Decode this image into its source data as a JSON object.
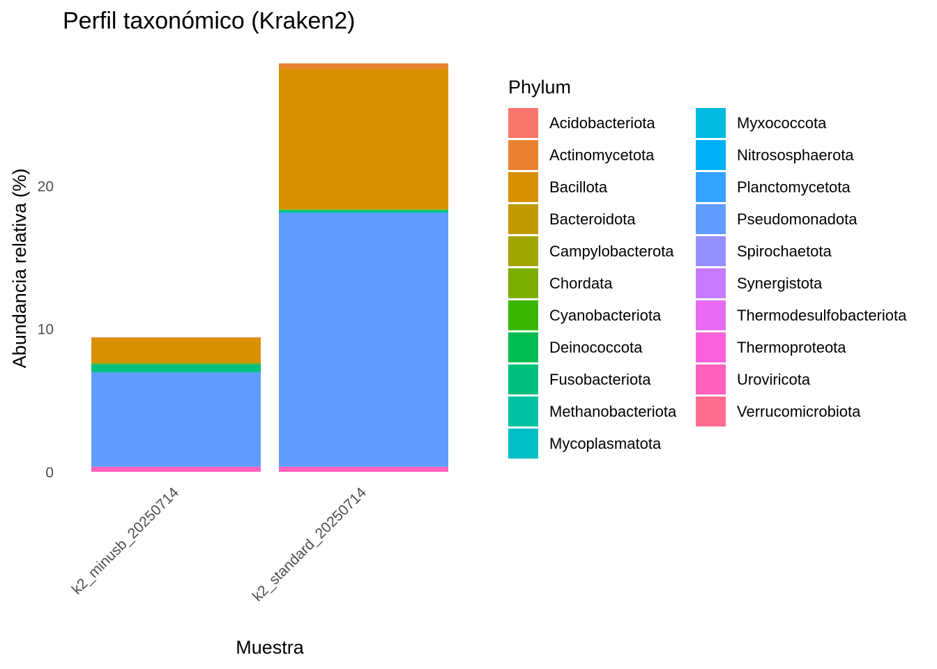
{
  "chart_data": {
    "type": "bar",
    "stacked": true,
    "title": "Perfil taxonómico (Kraken2)",
    "xlabel": "Muestra",
    "ylabel": "Abundancia relativa (%)",
    "ylim": [
      0,
      28.5
    ],
    "yticks": [
      0,
      10,
      20
    ],
    "grid": false,
    "legend_title": "Phylum",
    "legend_position": "right",
    "categories": [
      "k2_minusb_20250714",
      "k2_standard_20250714"
    ],
    "series": [
      {
        "name": "Acidobacteriota",
        "color": "#F8766D",
        "values": [
          0.0,
          0.0
        ]
      },
      {
        "name": "Actinomycetota",
        "color": "#EA8331",
        "values": [
          0.05,
          0.35
        ]
      },
      {
        "name": "Bacillota",
        "color": "#D89000",
        "values": [
          1.7,
          9.8
        ]
      },
      {
        "name": "Bacteroidota",
        "color": "#C09B00",
        "values": [
          0.03,
          0.05
        ]
      },
      {
        "name": "Campylobacterota",
        "color": "#A3A500",
        "values": [
          0.0,
          0.0
        ]
      },
      {
        "name": "Chordata",
        "color": "#7CAE00",
        "values": [
          0.1,
          0.05
        ]
      },
      {
        "name": "Cyanobacteriota",
        "color": "#39B600",
        "values": [
          0.0,
          0.0
        ]
      },
      {
        "name": "Deinococcota",
        "color": "#00BB4E",
        "values": [
          0.0,
          0.0
        ]
      },
      {
        "name": "Fusobacteriota",
        "color": "#00BF7D",
        "values": [
          0.55,
          0.15
        ]
      },
      {
        "name": "Methanobacteriota",
        "color": "#00C1A3",
        "values": [
          0.0,
          0.0
        ]
      },
      {
        "name": "Mycoplasmatota",
        "color": "#00BFC4",
        "values": [
          0.02,
          0.05
        ]
      },
      {
        "name": "Myxococcota",
        "color": "#00BAE0",
        "values": [
          0.0,
          0.0
        ]
      },
      {
        "name": "Nitrososphaerota",
        "color": "#00B0F6",
        "values": [
          0.0,
          0.0
        ]
      },
      {
        "name": "Planctomycetota",
        "color": "#35A2FF",
        "values": [
          0.0,
          0.0
        ]
      },
      {
        "name": "Pseudomonadota",
        "color": "#619CFF",
        "values": [
          6.6,
          17.75
        ]
      },
      {
        "name": "Spirochaetota",
        "color": "#9590FF",
        "values": [
          0.0,
          0.0
        ]
      },
      {
        "name": "Synergistota",
        "color": "#C77CFF",
        "values": [
          0.0,
          0.0
        ]
      },
      {
        "name": "Thermodesulfobacteriota",
        "color": "#E76BF3",
        "values": [
          0.0,
          0.0
        ]
      },
      {
        "name": "Thermoproteota",
        "color": "#FA62DB",
        "values": [
          0.0,
          0.0
        ]
      },
      {
        "name": "Uroviricota",
        "color": "#FF62BC",
        "values": [
          0.35,
          0.35
        ]
      },
      {
        "name": "Verrucomicrobiota",
        "color": "#FF6C91",
        "values": [
          0.0,
          0.0
        ]
      }
    ]
  }
}
